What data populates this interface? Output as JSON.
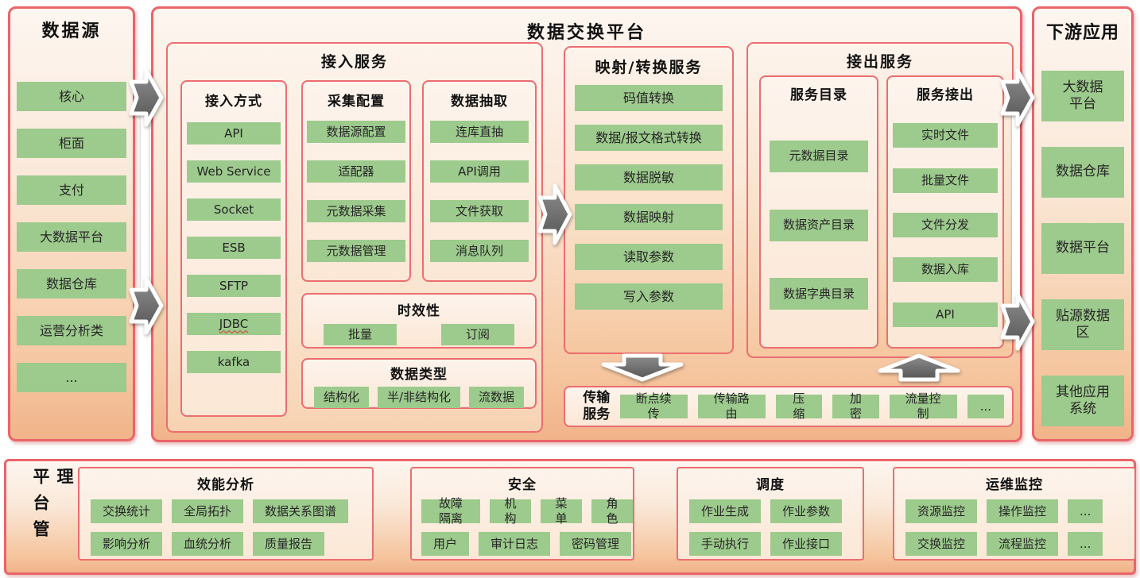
{
  "colors": {
    "border_red": "#ea6469",
    "chip_green": "#9dca8d",
    "arrow_gray": "#6b6b6b"
  },
  "data_source": {
    "title": "数据源",
    "items": [
      "核心",
      "柜面",
      "支付",
      "大数据平台",
      "数据仓库",
      "运营分析类",
      "..."
    ]
  },
  "platform": {
    "title": "数据交换平台",
    "access": {
      "title": "接入服务",
      "methods": {
        "title": "接入方式",
        "items": [
          "API",
          "Web Service",
          "Socket",
          "ESB",
          "SFTP",
          "JDBC",
          "kafka"
        ]
      },
      "collect": {
        "title": "采集配置",
        "items": [
          "数据源配置",
          "适配器",
          "元数据采集",
          "元数据管理"
        ]
      },
      "extract": {
        "title": "数据抽取",
        "items": [
          "连库直抽",
          "API调用",
          "文件获取",
          "消息队列"
        ]
      },
      "timeliness": {
        "title": "时效性",
        "items": [
          "批量",
          "订阅"
        ]
      },
      "datatypes": {
        "title": "数据类型",
        "items": [
          "结构化",
          "半/非结构化",
          "流数据"
        ]
      }
    },
    "mapping": {
      "title": "映射/转换服务",
      "items": [
        "码值转换",
        "数据/报文格式转换",
        "数据脱敏",
        "数据映射",
        "读取参数",
        "写入参数"
      ]
    },
    "output": {
      "title": "接出服务",
      "catalog": {
        "title": "服务目录",
        "items": [
          "元数据目录",
          "数据资产目录",
          "数据字典目录"
        ]
      },
      "serviceout": {
        "title": "服务接出",
        "items": [
          "实时文件",
          "批量文件",
          "文件分发",
          "数据入库",
          "API"
        ]
      }
    },
    "transport": {
      "title": "传输\n服务",
      "items": [
        "断点续传",
        "传输路由",
        "压缩",
        "加密",
        "流量控制",
        "..."
      ]
    }
  },
  "downstream": {
    "title": "下游应用",
    "items": [
      "大数据\n平台",
      "数据仓库",
      "数据平台",
      "贴源数据\n区",
      "其他应用\n系统"
    ]
  },
  "management": {
    "title": "平台管理",
    "sections": [
      {
        "title": "效能分析",
        "rows": [
          [
            "交换统计",
            "全局拓扑",
            "数据关系图谱"
          ],
          [
            "影响分析",
            "血统分析",
            "质量报告"
          ]
        ]
      },
      {
        "title": "安全",
        "rows": [
          [
            "故障隔离",
            "机构",
            "菜单",
            "角色"
          ],
          [
            "用户",
            "审计日志",
            "密码管理"
          ]
        ]
      },
      {
        "title": "调度",
        "rows": [
          [
            "作业生成",
            "作业参数"
          ],
          [
            "手动执行",
            "作业接口"
          ]
        ]
      },
      {
        "title": "运维监控",
        "rows": [
          [
            "资源监控",
            "操作监控",
            "..."
          ],
          [
            "交换监控",
            "流程监控",
            "..."
          ]
        ]
      }
    ]
  }
}
